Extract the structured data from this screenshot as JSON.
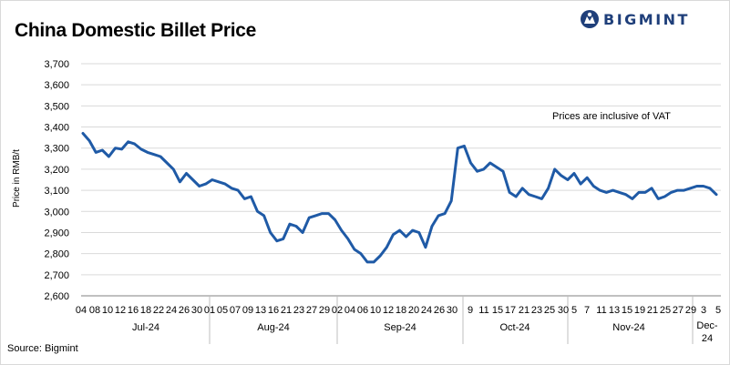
{
  "title": "China Domestic Billet Price",
  "logo_text": "BIGMINT",
  "source": "Source: Bigmint",
  "annotation": "Prices are inclusive of VAT",
  "colors": {
    "line": "#1f5aa6",
    "logo": "#1f3f7a",
    "grid": "#d9d9d9"
  },
  "chart_data": {
    "type": "line",
    "title": "China Domestic Billet Price",
    "xlabel": "",
    "ylabel": "Price in RMB/t",
    "ylim": [
      2600,
      3700
    ],
    "yticks": [
      2600,
      2700,
      2800,
      2900,
      3000,
      3100,
      3200,
      3300,
      3400,
      3500,
      3600,
      3700
    ],
    "ytick_labels": [
      "2,600",
      "2,700",
      "2,800",
      "2,900",
      "3,000",
      "3,100",
      "3,200",
      "3,300",
      "3,400",
      "3,500",
      "3,600",
      "3,700"
    ],
    "grid": true,
    "x_day_labels": [
      "04",
      "08",
      "10",
      "12",
      "16",
      "18",
      "22",
      "24",
      "26",
      "30",
      "01",
      "05",
      "07",
      "09",
      "13",
      "16",
      "21",
      "23",
      "27",
      "29",
      "02",
      "04",
      "06",
      "10",
      "12",
      "18",
      "20",
      "24",
      "26",
      "30",
      "9",
      "11",
      "15",
      "17",
      "21",
      "23",
      "25",
      "30",
      "5",
      "7",
      "11",
      "13",
      "15",
      "19",
      "21",
      "25",
      "27",
      "29",
      "3",
      "5"
    ],
    "months": [
      {
        "label": "Jul-24"
      },
      {
        "label": "Aug-24"
      },
      {
        "label": "Sep-24"
      },
      {
        "label": "Oct-24"
      },
      {
        "label": "Nov-24"
      },
      {
        "label": "Dec-24"
      }
    ],
    "series": [
      {
        "values": [
          3370,
          3335,
          3280,
          3290,
          3260,
          3300,
          3295,
          3330,
          3320,
          3295,
          3280,
          3270,
          3260,
          3230,
          3200,
          3140,
          3180,
          3150,
          3120,
          3130,
          3150,
          3140,
          3130,
          3110,
          3100,
          3060,
          3070,
          3000,
          2980,
          2900,
          2860,
          2870,
          2940,
          2930,
          2900,
          2970,
          2980,
          2990,
          2990,
          2960,
          2910,
          2870,
          2820,
          2800,
          2760,
          2760,
          2790,
          2830,
          2890,
          2910,
          2880,
          2910,
          2900,
          2830,
          2930,
          2980,
          2990,
          3050,
          3300,
          3310,
          3230,
          3190,
          3200,
          3230,
          3210,
          3190,
          3090,
          3070,
          3110,
          3080,
          3070,
          3060,
          3110,
          3200,
          3170,
          3150,
          3180,
          3130,
          3160,
          3120,
          3100,
          3090,
          3100,
          3090,
          3080,
          3060,
          3090,
          3090,
          3110,
          3060,
          3070,
          3090,
          3100,
          3100,
          3110,
          3120,
          3120,
          3110,
          3080
        ]
      }
    ]
  }
}
